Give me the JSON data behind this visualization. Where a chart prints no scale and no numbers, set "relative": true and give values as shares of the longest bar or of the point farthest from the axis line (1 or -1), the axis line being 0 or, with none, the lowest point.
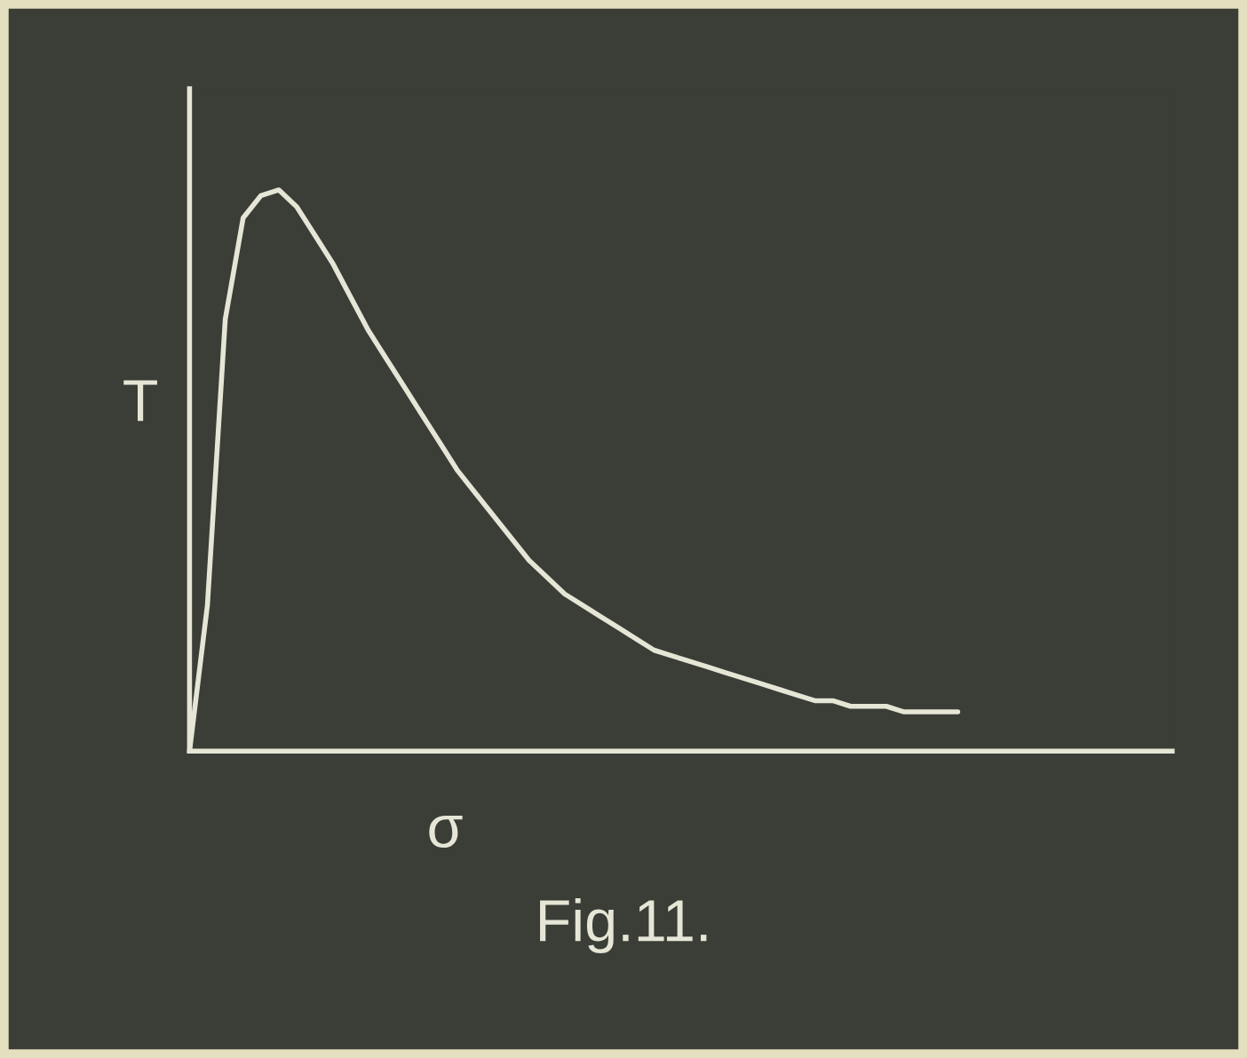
{
  "chart_data": {
    "type": "line",
    "relative": true,
    "xlabel": "σ",
    "ylabel": "T",
    "annotations": [
      "Fig.11."
    ],
    "categories": [
      null,
      null,
      null,
      null,
      null,
      null,
      null,
      null,
      null,
      null,
      null,
      null,
      null,
      null,
      null,
      null,
      null,
      null,
      null,
      null,
      null,
      null,
      null,
      null,
      null,
      null,
      null,
      null,
      null,
      null,
      null,
      null,
      null,
      null,
      null,
      null,
      null,
      null,
      null,
      null,
      null,
      null,
      null,
      null,
      null,
      null,
      null,
      null,
      null,
      null,
      null,
      null,
      null,
      null,
      null,
      null
    ],
    "series": [
      {
        "color": "#e6e6d6",
        "values": [
          0,
          0.26,
          0.77,
          0.95,
          0.99,
          1.0,
          0.97,
          0.92,
          0.87,
          0.81,
          0.75,
          0.7,
          0.65,
          0.6,
          0.55,
          0.5,
          0.46,
          0.42,
          0.38,
          0.34,
          0.31,
          0.28,
          0.26,
          0.24,
          0.22,
          0.2,
          0.18,
          0.17,
          0.16,
          0.15,
          0.14,
          0.13,
          0.12,
          0.11,
          0.1,
          0.09,
          0.09,
          0.08,
          0.08,
          0.08,
          0.07,
          0.07,
          0.07,
          0.07,
          null,
          null,
          null,
          null,
          null,
          null,
          null,
          null,
          null,
          null,
          null,
          null
        ]
      }
    ],
    "marker": "none",
    "line_style": "solid"
  }
}
